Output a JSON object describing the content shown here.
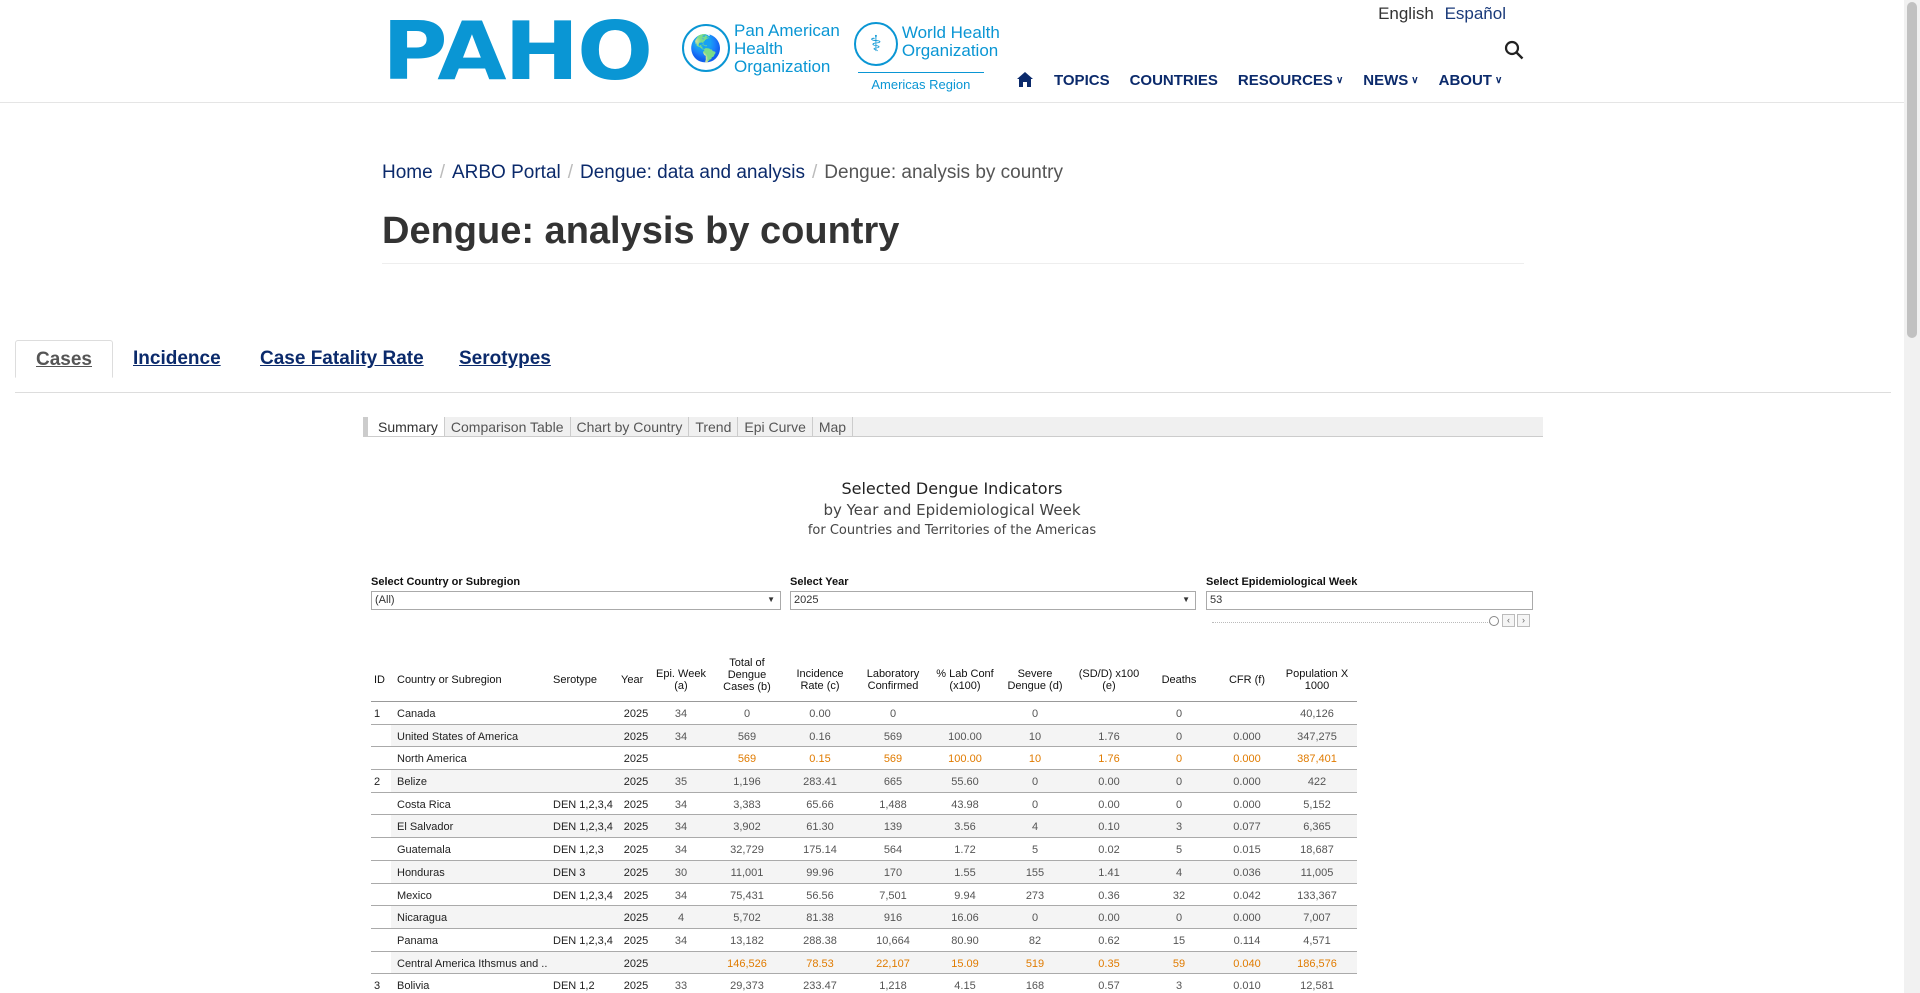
{
  "header": {
    "logo_main": "PAHO",
    "logo_org_line1": "Pan American",
    "logo_org_line2": "Health",
    "logo_org_line3": "Organization",
    "who_line1": "World Health",
    "who_line2": "Organization",
    "who_region": "Americas Region",
    "lang_english": "English",
    "lang_spanish": "Español",
    "nav": [
      "TOPICS",
      "COUNTRIES",
      "RESOURCES",
      "NEWS",
      "ABOUT"
    ]
  },
  "breadcrumb": [
    "Home",
    "ARBO Portal",
    "Dengue: data and analysis",
    "Dengue: analysis by country"
  ],
  "page_title": "Dengue: analysis by country",
  "main_tabs": [
    "Cases",
    "Incidence",
    "Case Fatality Rate",
    "Serotypes"
  ],
  "sub_tabs": [
    "Summary",
    "Comparison Table",
    "Chart by Country",
    "Trend",
    "Epi Curve",
    "Map"
  ],
  "dashboard": {
    "title": "Selected Dengue Indicators",
    "subtitle": "by Year and Epidemiological Week",
    "subtitle2": "for Countries and Territories of the Americas"
  },
  "filters": {
    "country_label": "Select Country or Subregion",
    "country_value": "(All)",
    "year_label": "Select Year",
    "year_value": "2025",
    "week_label": "Select Epidemiological Week",
    "week_value": "53"
  },
  "table": {
    "headers": {
      "id": "ID",
      "country": "Country or Subregion",
      "serotype": "Serotype",
      "year": "Year",
      "epi_week": "Epi. Week (a)",
      "total_cases": "Total of Dengue Cases (b)",
      "incidence": "Incidence Rate (c)",
      "lab_conf": "Laboratory Confirmed",
      "pct_lab": "% Lab Conf (x100)",
      "severe": "Severe Dengue (d)",
      "sd_ratio": "(SD/D) x100 (e)",
      "deaths": "Deaths",
      "cfr": "CFR (f)",
      "population": "Population X 1000"
    },
    "rows": [
      {
        "id": "1",
        "country": "Canada",
        "serotype": "",
        "year": "2025",
        "week": "34",
        "cases": "0",
        "inc": "0.00",
        "lab": "0",
        "pct": "",
        "severe": "0",
        "sd": "",
        "deaths": "0",
        "cfr": "",
        "pop": "40,126",
        "sub": false
      },
      {
        "id": "",
        "country": "United States of America",
        "serotype": "",
        "year": "2025",
        "week": "34",
        "cases": "569",
        "inc": "0.16",
        "lab": "569",
        "pct": "100.00",
        "severe": "10",
        "sd": "1.76",
        "deaths": "0",
        "cfr": "0.000",
        "pop": "347,275",
        "sub": false
      },
      {
        "id": "",
        "country": "North America",
        "serotype": "",
        "year": "2025",
        "week": "",
        "cases": "569",
        "inc": "0.15",
        "lab": "569",
        "pct": "100.00",
        "severe": "10",
        "sd": "1.76",
        "deaths": "0",
        "cfr": "0.000",
        "pop": "387,401",
        "sub": true
      },
      {
        "id": "2",
        "country": "Belize",
        "serotype": "",
        "year": "2025",
        "week": "35",
        "cases": "1,196",
        "inc": "283.41",
        "lab": "665",
        "pct": "55.60",
        "severe": "0",
        "sd": "0.00",
        "deaths": "0",
        "cfr": "0.000",
        "pop": "422",
        "sub": false
      },
      {
        "id": "",
        "country": "Costa Rica",
        "serotype": "DEN 1,2,3,4",
        "year": "2025",
        "week": "34",
        "cases": "3,383",
        "inc": "65.66",
        "lab": "1,488",
        "pct": "43.98",
        "severe": "0",
        "sd": "0.00",
        "deaths": "0",
        "cfr": "0.000",
        "pop": "5,152",
        "sub": false
      },
      {
        "id": "",
        "country": "El Salvador",
        "serotype": "DEN 1,2,3,4",
        "year": "2025",
        "week": "34",
        "cases": "3,902",
        "inc": "61.30",
        "lab": "139",
        "pct": "3.56",
        "severe": "4",
        "sd": "0.10",
        "deaths": "3",
        "cfr": "0.077",
        "pop": "6,365",
        "sub": false
      },
      {
        "id": "",
        "country": "Guatemala",
        "serotype": "DEN 1,2,3",
        "year": "2025",
        "week": "34",
        "cases": "32,729",
        "inc": "175.14",
        "lab": "564",
        "pct": "1.72",
        "severe": "5",
        "sd": "0.02",
        "deaths": "5",
        "cfr": "0.015",
        "pop": "18,687",
        "sub": false
      },
      {
        "id": "",
        "country": "Honduras",
        "serotype": "DEN 3",
        "year": "2025",
        "week": "30",
        "cases": "11,001",
        "inc": "99.96",
        "lab": "170",
        "pct": "1.55",
        "severe": "155",
        "sd": "1.41",
        "deaths": "4",
        "cfr": "0.036",
        "pop": "11,005",
        "sub": false
      },
      {
        "id": "",
        "country": "Mexico",
        "serotype": "DEN 1,2,3,4",
        "year": "2025",
        "week": "34",
        "cases": "75,431",
        "inc": "56.56",
        "lab": "7,501",
        "pct": "9.94",
        "severe": "273",
        "sd": "0.36",
        "deaths": "32",
        "cfr": "0.042",
        "pop": "133,367",
        "sub": false
      },
      {
        "id": "",
        "country": "Nicaragua",
        "serotype": "",
        "year": "2025",
        "week": "4",
        "cases": "5,702",
        "inc": "81.38",
        "lab": "916",
        "pct": "16.06",
        "severe": "0",
        "sd": "0.00",
        "deaths": "0",
        "cfr": "0.000",
        "pop": "7,007",
        "sub": false
      },
      {
        "id": "",
        "country": "Panama",
        "serotype": "DEN 1,2,3,4",
        "year": "2025",
        "week": "34",
        "cases": "13,182",
        "inc": "288.38",
        "lab": "10,664",
        "pct": "80.90",
        "severe": "82",
        "sd": "0.62",
        "deaths": "15",
        "cfr": "0.114",
        "pop": "4,571",
        "sub": false
      },
      {
        "id": "",
        "country": "Central America Ithsmus and ..",
        "serotype": "",
        "year": "2025",
        "week": "",
        "cases": "146,526",
        "inc": "78.53",
        "lab": "22,107",
        "pct": "15.09",
        "severe": "519",
        "sd": "0.35",
        "deaths": "59",
        "cfr": "0.040",
        "pop": "186,576",
        "sub": true
      },
      {
        "id": "3",
        "country": "Bolivia",
        "serotype": "DEN 1,2",
        "year": "2025",
        "week": "33",
        "cases": "29,373",
        "inc": "233.47",
        "lab": "1,218",
        "pct": "4.15",
        "severe": "168",
        "sd": "0.57",
        "deaths": "3",
        "cfr": "0.010",
        "pop": "12,581",
        "sub": false
      }
    ]
  },
  "colors": {
    "brand": "#0a96d4",
    "nav": "#0b2a6b",
    "subtotal": "#e07b00"
  }
}
